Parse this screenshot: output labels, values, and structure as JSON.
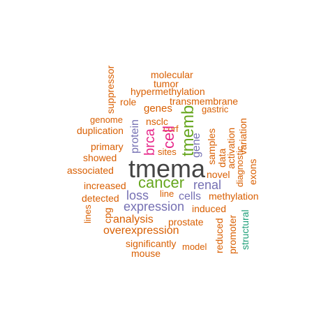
{
  "cloud": {
    "top": [
      "molecular",
      "tumor",
      "hypermethylation",
      "role",
      "transmembrane",
      "genes",
      "gastric",
      "genome",
      "nsclc",
      "duplication",
      "corf",
      "primary",
      "sites",
      "showed",
      "associated",
      "novel",
      "increased",
      "line",
      "renal",
      "detected",
      "methylation",
      "induced",
      "analysis",
      "prostate",
      "overexpression",
      "significantly",
      "model",
      "mouse"
    ],
    "vertical": [
      "suppressor",
      "protein",
      "brca",
      "cell",
      "tmemb",
      "gene",
      "samples",
      "data",
      "activation",
      "variation",
      "diagnostic",
      "exons",
      "lines",
      "cpg",
      "reduced",
      "promoter",
      "structural"
    ],
    "center": [
      "tmema",
      "cancer",
      "loss",
      "expression",
      "cells"
    ]
  },
  "colors": {
    "orange": "#D95F02",
    "purple": "#7570B3",
    "magenta": "#E7298A",
    "green": "#66A61E",
    "teal": "#1B9E77",
    "dark": "#444444"
  }
}
